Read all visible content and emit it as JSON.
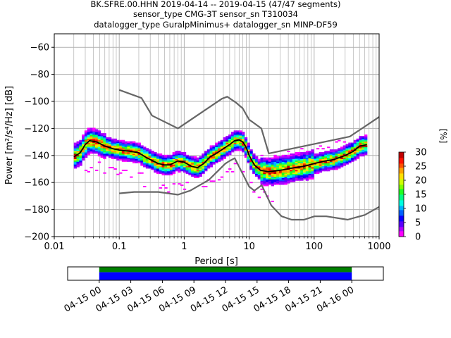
{
  "title_lines": [
    "BK.SFRE.00.HHN   2019-04-14 -- 2019-04-15  (47/47 segments)",
    "sensor_type CMG-3T sensor_sn T310034",
    "datalogger_type GuralpMinimus+ datalogger_sn MINP-DF59"
  ],
  "chart_data": {
    "type": "heatmap",
    "xlabel": "Period [s]",
    "ylabel": "Power [m²/s⁴/Hz] [dB]",
    "xscale": "log",
    "xlim": [
      0.01,
      1000
    ],
    "ylim": [
      -200,
      -50
    ],
    "x_ticks": [
      {
        "value": 0.01,
        "label": "0.01"
      },
      {
        "value": 0.1,
        "label": "0.1"
      },
      {
        "value": 1,
        "label": "1"
      },
      {
        "value": 10,
        "label": "10"
      },
      {
        "value": 100,
        "label": "100"
      },
      {
        "value": 1000,
        "label": "1000"
      }
    ],
    "y_ticks": [
      {
        "value": -60,
        "label": "−60"
      },
      {
        "value": -80,
        "label": "−80"
      },
      {
        "value": -100,
        "label": "−100"
      },
      {
        "value": -120,
        "label": "−120"
      },
      {
        "value": -140,
        "label": "−140"
      },
      {
        "value": -160,
        "label": "−160"
      },
      {
        "value": -180,
        "label": "−180"
      },
      {
        "value": -200,
        "label": "−200"
      }
    ],
    "grid": true,
    "colorbar": {
      "label": "[%]",
      "range": [
        0,
        30
      ],
      "ticks": [
        {
          "value": 0,
          "label": "0"
        },
        {
          "value": 5,
          "label": "5"
        },
        {
          "value": 10,
          "label": "10"
        },
        {
          "value": 15,
          "label": "15"
        },
        {
          "value": 20,
          "label": "20"
        },
        {
          "value": 25,
          "label": "25"
        },
        {
          "value": 30,
          "label": "30"
        }
      ],
      "colors": [
        "#ff00ff",
        "#ad00ff",
        "#5a00ff",
        "#0a00ff",
        "#0060ff",
        "#00b4ff",
        "#00ffe0",
        "#00ff80",
        "#20ff20",
        "#80ff00",
        "#d0ff00",
        "#ffe000",
        "#ffa000",
        "#ff5000",
        "#ff1000",
        "#c00000"
      ]
    },
    "series": [
      {
        "role": "median",
        "color": "#000000",
        "points": [
          [
            0.02,
            -141
          ],
          [
            0.025,
            -138
          ],
          [
            0.03,
            -132
          ],
          [
            0.035,
            -129
          ],
          [
            0.045,
            -130
          ],
          [
            0.06,
            -133
          ],
          [
            0.08,
            -135
          ],
          [
            0.1,
            -136
          ],
          [
            0.15,
            -137
          ],
          [
            0.2,
            -138
          ],
          [
            0.25,
            -141
          ],
          [
            0.3,
            -143
          ],
          [
            0.4,
            -146
          ],
          [
            0.5,
            -147
          ],
          [
            0.6,
            -147
          ],
          [
            0.8,
            -144
          ],
          [
            1,
            -145
          ],
          [
            1.3,
            -148
          ],
          [
            1.6,
            -149
          ],
          [
            2,
            -146
          ],
          [
            2.5,
            -141
          ],
          [
            3,
            -139
          ],
          [
            4,
            -135
          ],
          [
            5,
            -132
          ],
          [
            6,
            -129
          ],
          [
            7,
            -128.5
          ],
          [
            8,
            -130
          ],
          [
            9,
            -134
          ],
          [
            10,
            -140
          ],
          [
            12,
            -147
          ],
          [
            15,
            -151
          ],
          [
            20,
            -152
          ],
          [
            30,
            -151
          ],
          [
            50,
            -149
          ],
          [
            70,
            -148
          ],
          [
            100,
            -146
          ],
          [
            150,
            -144
          ],
          [
            200,
            -143
          ],
          [
            300,
            -140
          ],
          [
            400,
            -137
          ],
          [
            500,
            -133
          ],
          [
            650,
            -132
          ]
        ]
      },
      {
        "role": "high_noise_model",
        "color": "#666666",
        "points": [
          [
            0.1,
            -91.5
          ],
          [
            0.22,
            -97.5
          ],
          [
            0.32,
            -110.5
          ],
          [
            0.8,
            -120
          ],
          [
            3.8,
            -98
          ],
          [
            4.6,
            -96.5
          ],
          [
            6.3,
            -101
          ],
          [
            7.9,
            -105
          ],
          [
            10,
            -113.5
          ],
          [
            15.4,
            -120
          ],
          [
            20,
            -138.5
          ],
          [
            354,
            -126
          ],
          [
            1000,
            -111.5
          ]
        ]
      },
      {
        "role": "low_noise_model",
        "color": "#666666",
        "points": [
          [
            0.1,
            -168
          ],
          [
            0.17,
            -167
          ],
          [
            0.4,
            -167
          ],
          [
            0.8,
            -169
          ],
          [
            1.24,
            -166
          ],
          [
            2.4,
            -158
          ],
          [
            4.3,
            -146
          ],
          [
            5,
            -144
          ],
          [
            6,
            -142
          ],
          [
            10,
            -163
          ],
          [
            12,
            -166
          ],
          [
            15.6,
            -162
          ],
          [
            21.9,
            -177
          ],
          [
            31.6,
            -185
          ],
          [
            45,
            -187.5
          ],
          [
            70,
            -187.5
          ],
          [
            101,
            -185
          ],
          [
            154,
            -185
          ],
          [
            328,
            -187.5
          ],
          [
            600,
            -184
          ],
          [
            1000,
            -178
          ]
        ]
      }
    ],
    "timeline": {
      "tick_labels": [
        "04-15 00",
        "04-15 03",
        "04-15 06",
        "04-15 09",
        "04-15 12",
        "04-15 15",
        "04-15 18",
        "04-15 21",
        "04-16 00"
      ],
      "start_hours": -3,
      "end_hours": 27,
      "data_start_hours": 0,
      "data_end_hours": 24,
      "colors": {
        "coverage": "#008000",
        "segments": "#0000ff"
      }
    }
  }
}
